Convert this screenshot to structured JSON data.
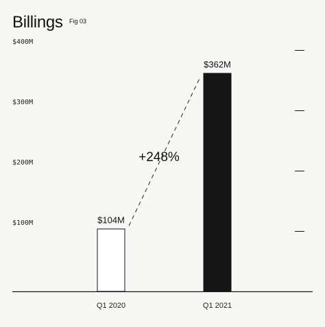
{
  "header": {
    "title": "Billings",
    "fig_label": "Fig 03"
  },
  "chart_data": {
    "type": "bar",
    "title": "Billings",
    "categories": [
      "Q1 2020",
      "Q1 2021"
    ],
    "values": [
      104,
      362
    ],
    "value_labels": [
      "$104M",
      "$362M"
    ],
    "yticks": [
      {
        "value": 100,
        "label": "$100M"
      },
      {
        "value": 200,
        "label": "$200M"
      },
      {
        "value": 300,
        "label": "$300M"
      },
      {
        "value": 400,
        "label": "$400M"
      }
    ],
    "ylim": [
      0,
      400
    ],
    "xlabel": "",
    "ylabel": "",
    "grid": false,
    "growth_annotation": "+248%",
    "bar_styles": [
      {
        "fill": "#ffffff",
        "stroke": "#111111"
      },
      {
        "fill": "#151515",
        "stroke": "#151515"
      }
    ],
    "colors": {
      "axis": "#111111",
      "tick_text": "#222222"
    }
  }
}
